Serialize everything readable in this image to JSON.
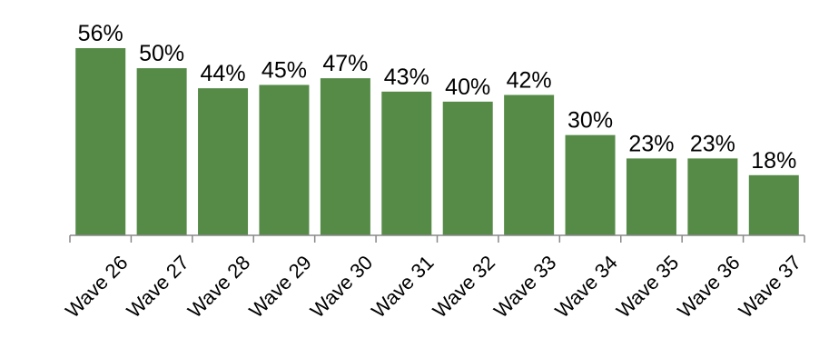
{
  "chart_data": {
    "type": "bar",
    "categories": [
      "Wave 26",
      "Wave 27",
      "Wave 28",
      "Wave 29",
      "Wave 30",
      "Wave 31",
      "Wave 32",
      "Wave 33",
      "Wave 34",
      "Wave 35",
      "Wave 36",
      "Wave 37"
    ],
    "values": [
      56,
      50,
      44,
      45,
      47,
      43,
      40,
      42,
      30,
      23,
      23,
      18
    ],
    "data_labels": [
      "56%",
      "50%",
      "44%",
      "45%",
      "47%",
      "43%",
      "40%",
      "42%",
      "30%",
      "23%",
      "23%",
      "18%"
    ],
    "title": "",
    "xlabel": "",
    "ylabel": "",
    "ylim": [
      0,
      56
    ],
    "grid": false,
    "legend": "none",
    "bar_color": "#558b47",
    "axis_color": "#888888"
  }
}
